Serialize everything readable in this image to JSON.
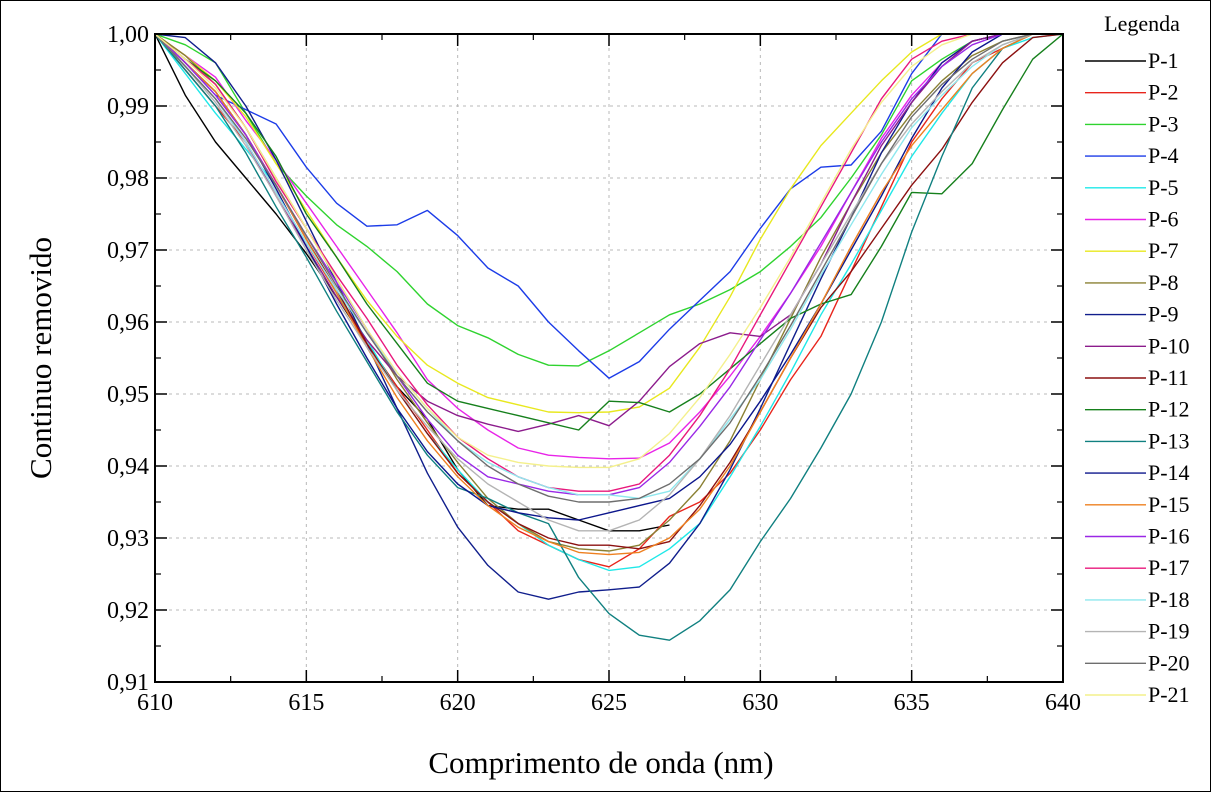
{
  "chart_data": {
    "type": "line",
    "title": "",
    "xlabel": "Comprimento de onda (nm)",
    "ylabel": "Continuo removido",
    "xlim": [
      610,
      640
    ],
    "ylim": [
      0.91,
      1.0
    ],
    "xticks": [
      610,
      615,
      620,
      625,
      630,
      635,
      640
    ],
    "xtick_labels": [
      "610",
      "615",
      "620",
      "625",
      "630",
      "635",
      "640"
    ],
    "yticks": [
      0.91,
      0.92,
      0.93,
      0.94,
      0.95,
      0.96,
      0.97,
      0.98,
      0.99,
      1.0
    ],
    "ytick_labels": [
      "0,91",
      "0,92",
      "0,93",
      "0,94",
      "0,95",
      "0,96",
      "0,97",
      "0,98",
      "0,99",
      "1,00"
    ],
    "grid": true,
    "legend": {
      "title": "Legenda",
      "position": "right"
    },
    "x": [
      610,
      611,
      612,
      613,
      614,
      615,
      616,
      617,
      618,
      619,
      620,
      621,
      622,
      623,
      624,
      625,
      626,
      627,
      628,
      629,
      630,
      631,
      632,
      633,
      634,
      635,
      636,
      637,
      638,
      639,
      640
    ],
    "series": [
      {
        "name": "P-1",
        "color": "#000000",
        "values": [
          1.0,
          0.9915,
          0.985,
          0.98,
          0.975,
          0.9695,
          0.9635,
          0.957,
          0.951,
          0.9465,
          0.9395,
          0.9345,
          0.934,
          0.934,
          0.9325,
          0.931,
          0.931,
          0.9318,
          null,
          null,
          null,
          null,
          null,
          null,
          null,
          null,
          null,
          null,
          null,
          null,
          null
        ]
      },
      {
        "name": "P-2",
        "color": "#e8251c",
        "values": [
          1.0,
          0.995,
          0.99,
          0.985,
          0.978,
          0.971,
          0.964,
          0.957,
          0.951,
          0.945,
          0.939,
          0.935,
          0.931,
          0.929,
          0.927,
          0.926,
          0.9285,
          0.933,
          0.935,
          0.939,
          0.945,
          0.952,
          0.958,
          0.967,
          0.976,
          0.985,
          0.991,
          0.996,
          0.998,
          1.0,
          1.0
        ]
      },
      {
        "name": "P-3",
        "color": "#2fd32f",
        "values": [
          1.0,
          0.9985,
          0.996,
          0.989,
          0.982,
          0.9775,
          0.9735,
          0.9705,
          0.967,
          0.9625,
          0.9595,
          0.9578,
          0.9555,
          0.954,
          0.9539,
          0.956,
          0.9585,
          0.961,
          0.9625,
          0.9645,
          0.967,
          0.9705,
          0.9745,
          0.98,
          0.986,
          0.9935,
          0.9965,
          0.999,
          1.0,
          1.0,
          1.0
        ]
      },
      {
        "name": "P-4",
        "color": "#1c3ce8",
        "values": [
          1.0,
          0.996,
          0.9915,
          0.9895,
          0.9875,
          0.9815,
          0.9765,
          0.9733,
          0.9735,
          0.9755,
          0.972,
          0.9675,
          0.965,
          0.96,
          0.956,
          0.9522,
          0.9545,
          0.959,
          0.963,
          0.967,
          0.973,
          0.9785,
          0.9815,
          0.9818,
          0.9865,
          0.9945,
          1.0,
          1.0,
          1.0,
          1.0,
          1.0
        ]
      },
      {
        "name": "P-5",
        "color": "#1ee8e8",
        "values": [
          1.0,
          0.9945,
          0.989,
          0.984,
          0.979,
          0.9715,
          0.964,
          0.9575,
          0.9505,
          0.9445,
          0.9395,
          0.935,
          0.932,
          0.929,
          0.927,
          0.9255,
          0.926,
          0.9285,
          0.932,
          0.9385,
          0.9455,
          0.953,
          0.961,
          0.968,
          0.9755,
          0.983,
          0.989,
          0.9945,
          0.998,
          0.9995,
          1.0
        ]
      },
      {
        "name": "P-6",
        "color": "#e824e8",
        "values": [
          1.0,
          0.997,
          0.994,
          0.988,
          0.9825,
          0.9765,
          0.9705,
          0.9645,
          0.9585,
          0.952,
          0.948,
          0.945,
          0.9425,
          0.9415,
          0.9412,
          0.941,
          0.9411,
          0.9432,
          0.9475,
          0.9525,
          0.958,
          0.964,
          0.9705,
          0.978,
          0.9855,
          0.9915,
          0.996,
          0.999,
          1.0,
          1.0,
          1.0
        ]
      },
      {
        "name": "P-7",
        "color": "#e8e81e",
        "values": [
          1.0,
          0.997,
          0.9935,
          0.9885,
          0.982,
          0.9755,
          0.969,
          0.963,
          0.958,
          0.954,
          0.9515,
          0.9495,
          0.9485,
          0.9475,
          0.9474,
          0.9475,
          0.9482,
          0.9508,
          0.9565,
          0.9635,
          0.9715,
          0.9785,
          0.9845,
          0.989,
          0.9935,
          0.9975,
          1.0,
          1.0,
          1.0,
          1.0,
          1.0
        ]
      },
      {
        "name": "P-8",
        "color": "#8a8033",
        "values": [
          1.0,
          0.997,
          0.993,
          0.987,
          0.98,
          0.973,
          0.966,
          0.959,
          0.952,
          0.946,
          0.9405,
          0.9355,
          0.932,
          0.9295,
          0.9285,
          0.9282,
          0.929,
          0.9325,
          0.937,
          0.9435,
          0.952,
          0.9605,
          0.969,
          0.9765,
          0.9835,
          0.989,
          0.9935,
          0.997,
          0.999,
          1.0,
          1.0
        ]
      },
      {
        "name": "P-9",
        "color": "#101e8c",
        "values": [
          1.0,
          0.9995,
          0.996,
          0.99,
          0.9825,
          0.974,
          0.9655,
          0.957,
          0.948,
          0.939,
          0.9315,
          0.9262,
          0.9225,
          0.9215,
          0.9225,
          0.9228,
          0.9232,
          0.9265,
          0.932,
          0.9395,
          0.948,
          0.957,
          0.966,
          0.9745,
          0.9835,
          0.9905,
          0.996,
          0.999,
          1.0,
          1.0,
          1.0
        ]
      },
      {
        "name": "P-10",
        "color": "#8c1c8c",
        "values": [
          1.0,
          0.9955,
          0.991,
          0.985,
          0.9775,
          0.9705,
          0.9635,
          0.9575,
          0.9525,
          0.949,
          0.947,
          0.9458,
          0.9448,
          0.9458,
          0.947,
          0.9456,
          0.949,
          0.9538,
          0.957,
          0.9585,
          0.958,
          0.961,
          0.968,
          0.9765,
          0.9845,
          0.9905,
          0.9955,
          0.999,
          1.0,
          1.0,
          1.0
        ]
      },
      {
        "name": "P-11",
        "color": "#8c1010",
        "values": [
          1.0,
          0.996,
          0.992,
          0.986,
          0.979,
          0.9715,
          0.9645,
          0.957,
          0.9505,
          0.9445,
          0.939,
          0.935,
          0.932,
          0.93,
          0.929,
          0.929,
          0.9285,
          0.9295,
          0.9345,
          0.9405,
          0.9475,
          0.955,
          0.962,
          0.967,
          0.973,
          0.979,
          0.984,
          0.9905,
          0.996,
          0.9995,
          1.0
        ]
      },
      {
        "name": "P-12",
        "color": "#16801c",
        "values": [
          1.0,
          0.9965,
          0.9935,
          0.989,
          0.983,
          0.975,
          0.969,
          0.9625,
          0.957,
          0.9515,
          0.949,
          0.948,
          0.947,
          0.946,
          0.945,
          0.949,
          0.9488,
          0.9475,
          0.95,
          0.9535,
          0.957,
          0.9605,
          0.9625,
          0.9638,
          0.9705,
          0.978,
          0.9778,
          0.982,
          0.9895,
          0.9965,
          1.0
        ]
      },
      {
        "name": "P-13",
        "color": "#108080",
        "values": [
          1.0,
          0.995,
          0.99,
          0.9835,
          0.976,
          0.969,
          0.9615,
          0.9545,
          0.9475,
          0.9415,
          0.937,
          0.9355,
          0.9335,
          0.932,
          0.9245,
          0.9195,
          0.9165,
          0.9158,
          0.9185,
          0.9228,
          0.9295,
          0.9355,
          0.9425,
          0.95,
          0.96,
          0.9725,
          0.983,
          0.9925,
          0.998,
          1.0,
          1.0
        ]
      },
      {
        "name": "P-14",
        "color": "#0c168c",
        "values": [
          1.0,
          0.996,
          0.992,
          0.986,
          0.9785,
          0.9705,
          0.9625,
          0.955,
          0.948,
          0.942,
          0.9375,
          0.9345,
          0.9335,
          0.9328,
          0.9325,
          0.9335,
          0.9345,
          0.9355,
          0.9385,
          0.943,
          0.949,
          0.9555,
          0.9625,
          0.97,
          0.9775,
          0.9855,
          0.9925,
          0.9975,
          1.0,
          1.0,
          1.0
        ]
      },
      {
        "name": "P-15",
        "color": "#ee8020",
        "values": [
          1.0,
          0.996,
          0.992,
          0.986,
          0.979,
          0.9715,
          0.964,
          0.9565,
          0.9495,
          0.9435,
          0.9385,
          0.9345,
          0.9315,
          0.9295,
          0.928,
          0.9277,
          0.928,
          0.93,
          0.934,
          0.94,
          0.9475,
          0.955,
          0.9625,
          0.9705,
          0.978,
          0.9845,
          0.9895,
          0.9945,
          0.998,
          1.0,
          1.0
        ]
      },
      {
        "name": "P-16",
        "color": "#9a28e6",
        "values": [
          1.0,
          0.996,
          0.9915,
          0.986,
          0.979,
          0.972,
          0.9655,
          0.959,
          0.9525,
          0.9465,
          0.9415,
          0.9385,
          0.9375,
          0.9365,
          0.936,
          0.936,
          0.937,
          0.9405,
          0.9455,
          0.951,
          0.9575,
          0.964,
          0.971,
          0.978,
          0.985,
          0.991,
          0.9955,
          0.9985,
          1.0,
          1.0,
          1.0
        ]
      },
      {
        "name": "P-17",
        "color": "#e8187c",
        "values": [
          1.0,
          0.9965,
          0.993,
          0.987,
          0.9795,
          0.973,
          0.9665,
          0.9605,
          0.954,
          0.9485,
          0.944,
          0.941,
          0.9385,
          0.937,
          0.9365,
          0.9365,
          0.9375,
          0.9415,
          0.947,
          0.9535,
          0.961,
          0.9685,
          0.976,
          0.9835,
          0.991,
          0.9965,
          0.999,
          1.0,
          1.0,
          1.0,
          1.0
        ]
      },
      {
        "name": "P-18",
        "color": "#8ee8ee",
        "values": [
          1.0,
          0.9955,
          0.991,
          0.985,
          0.978,
          0.971,
          0.9645,
          0.9585,
          0.953,
          0.948,
          0.9435,
          0.9405,
          0.9385,
          0.937,
          0.936,
          0.936,
          0.9355,
          0.9365,
          0.941,
          0.9465,
          0.952,
          0.959,
          0.9665,
          0.9735,
          0.9805,
          0.987,
          0.9915,
          0.9955,
          0.9985,
          1.0,
          1.0
        ]
      },
      {
        "name": "P-19",
        "color": "#b4b4b4",
        "values": [
          1.0,
          0.9955,
          0.9905,
          0.9845,
          0.9775,
          0.97,
          0.963,
          0.9565,
          0.9505,
          0.9455,
          0.941,
          0.9375,
          0.935,
          0.9325,
          0.931,
          0.931,
          0.9325,
          0.936,
          0.941,
          0.947,
          0.954,
          0.961,
          0.968,
          0.975,
          0.982,
          0.9875,
          0.992,
          0.996,
          0.9985,
          1.0,
          1.0
        ]
      },
      {
        "name": "P-20",
        "color": "#6e6e6e",
        "values": [
          1.0,
          0.9955,
          0.991,
          0.9855,
          0.979,
          0.972,
          0.965,
          0.9585,
          0.9525,
          0.9475,
          0.9435,
          0.94,
          0.9375,
          0.9358,
          0.935,
          0.935,
          0.9355,
          0.9375,
          0.941,
          0.946,
          0.9525,
          0.9595,
          0.967,
          0.9745,
          0.982,
          0.9885,
          0.993,
          0.9965,
          0.999,
          1.0,
          1.0
        ]
      },
      {
        "name": "P-21",
        "color": "#f4f08c",
        "values": [
          1.0,
          0.9965,
          0.9925,
          0.987,
          0.98,
          0.973,
          0.966,
          0.959,
          0.953,
          0.948,
          0.944,
          0.9415,
          0.9405,
          0.94,
          0.9398,
          0.9398,
          0.941,
          0.9445,
          0.9495,
          0.9555,
          0.962,
          0.969,
          0.9765,
          0.984,
          0.9905,
          0.9955,
          0.9985,
          1.0,
          1.0,
          1.0,
          1.0
        ]
      }
    ]
  }
}
